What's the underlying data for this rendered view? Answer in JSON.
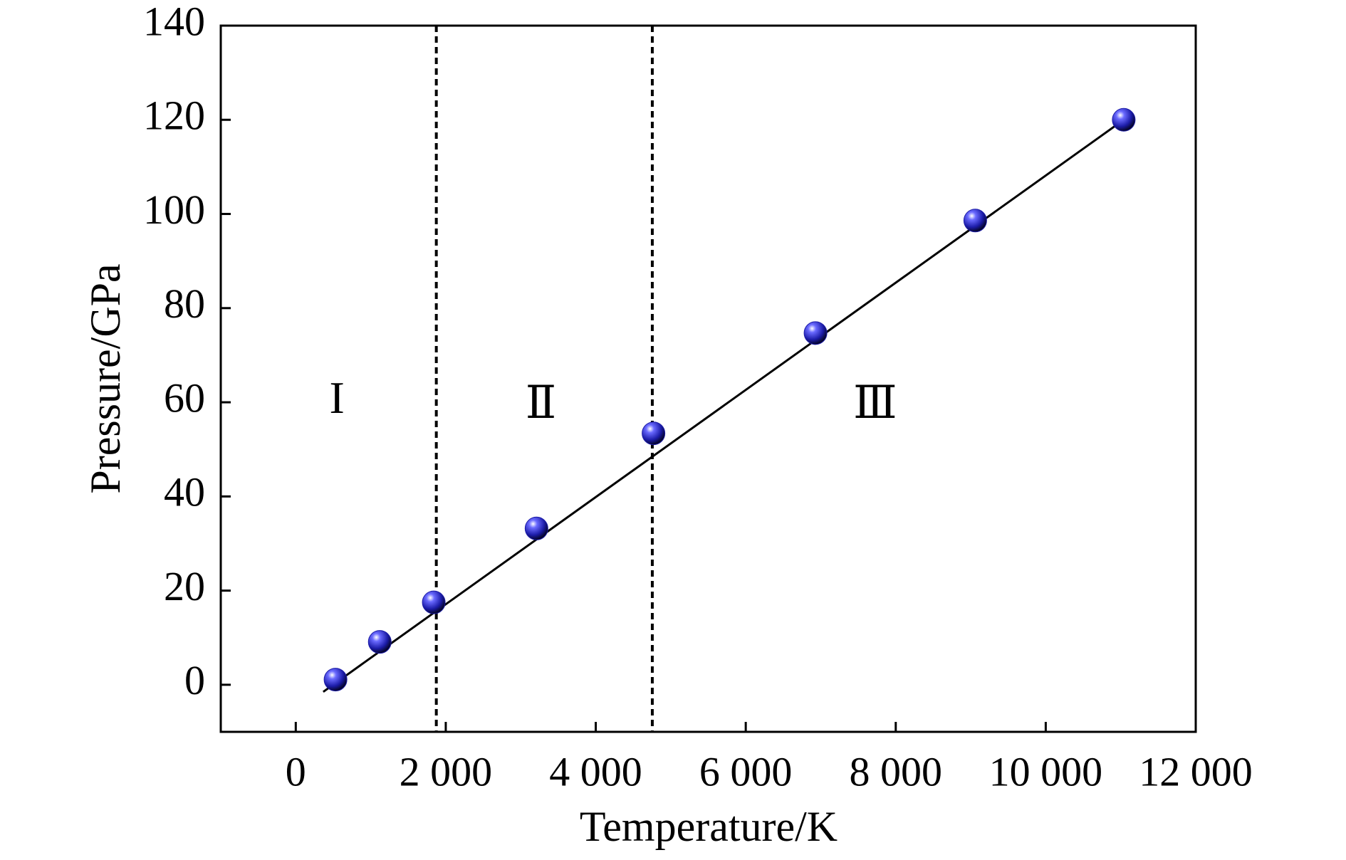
{
  "chart_data": {
    "type": "scatter",
    "xlabel": "Temperature/K",
    "ylabel": "Pressure/GPa",
    "xlim": [
      -1000,
      12000
    ],
    "ylim": [
      -10,
      140
    ],
    "xticks": [
      0,
      {
        "value": 2000,
        "label": "2 000"
      },
      {
        "value": 4000,
        "label": "4 000"
      },
      {
        "value": 6000,
        "label": "6 000"
      },
      {
        "value": 8000,
        "label": "8 000"
      },
      {
        "value": 10000,
        "label": "10 000"
      },
      {
        "value": 12000,
        "label": "12 000"
      }
    ],
    "yticks": [
      0,
      20,
      40,
      60,
      80,
      100,
      120,
      140
    ],
    "series": [
      {
        "type": "line",
        "color": "#000000",
        "x": [
          366,
          11040
        ],
        "values": [
          -1.5,
          120
        ]
      },
      {
        "type": "scatter",
        "color": "#1c1ca8",
        "x": [
          530,
          1120,
          1840,
          3210,
          4770,
          6930,
          9060,
          11040
        ],
        "values": [
          1.1,
          9.1,
          17.5,
          33.2,
          53.4,
          74.7,
          98.6,
          120
        ]
      }
    ],
    "vlines": [
      1874,
      4754
    ],
    "annotations": [
      {
        "text": "I",
        "x": 549,
        "y": 60
      },
      {
        "text": "Ⅱ",
        "x": 3269,
        "y": 58.9
      },
      {
        "text": "Ⅲ",
        "x": 7726,
        "y": 58.9
      }
    ]
  }
}
